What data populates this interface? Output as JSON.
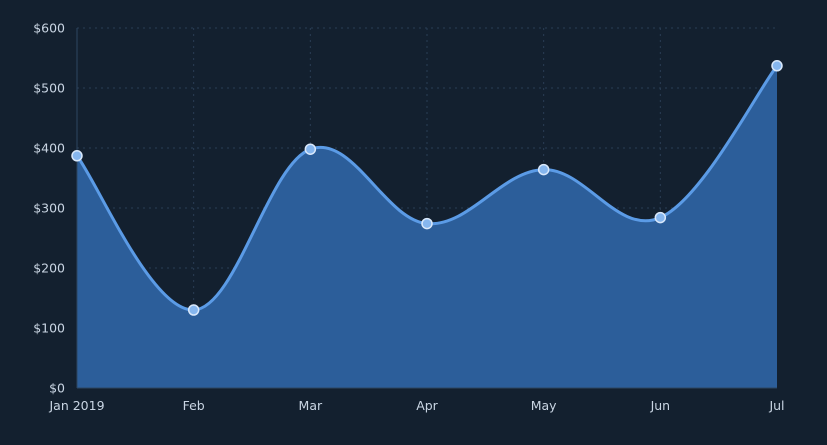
{
  "colors": {
    "background": "#13202f",
    "area_fill": "#2c5e9a",
    "line": "#5b9be6",
    "point_fill": "#86b6ee",
    "point_stroke": "#d9e8fb",
    "grid": "#2a3e55",
    "tick_text": "#c9d5e3"
  },
  "chart_data": {
    "type": "area",
    "title": "",
    "xlabel": "",
    "ylabel": "",
    "categories": [
      "Jan 2019",
      "Feb",
      "Mar",
      "Apr",
      "May",
      "Jun",
      "Jul"
    ],
    "series": [
      {
        "values": [
          387,
          130,
          398,
          274,
          364,
          284,
          537
        ]
      }
    ],
    "ylim": [
      0,
      600
    ],
    "y_ticks": [
      {
        "value": 0,
        "label": "$0"
      },
      {
        "value": 100,
        "label": "$100"
      },
      {
        "value": 200,
        "label": "$200"
      },
      {
        "value": 300,
        "label": "$300"
      },
      {
        "value": 400,
        "label": "$400"
      },
      {
        "value": 500,
        "label": "$500"
      },
      {
        "value": 600,
        "label": "$600"
      }
    ],
    "grid": true,
    "curve": "smooth",
    "markers": true
  }
}
